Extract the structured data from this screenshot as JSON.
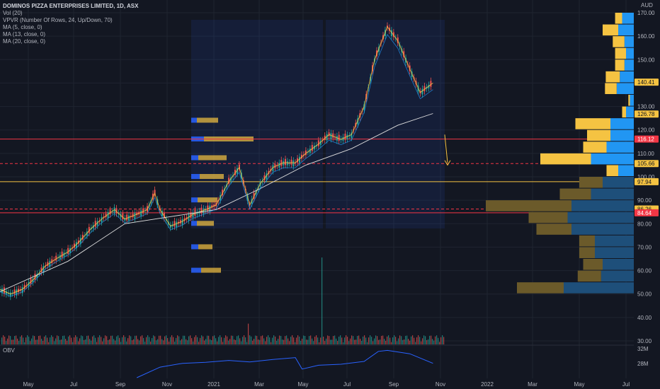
{
  "header": {
    "title": "DOMINOS PIZZA ENTERPRISES LIMITED, 1D, ASX",
    "indicators": [
      "Vol (20)",
      "VPVR (Number Of Rows, 24, Up/Down, 70)",
      "MA (5, close, 0)",
      "MA (13, close, 0)",
      "MA (20, close, 0)"
    ]
  },
  "obv_label": "OBV",
  "currency": "AUD",
  "chart_data": {
    "type": "candlestick",
    "x_ticks": [
      "May",
      "Jul",
      "Sep",
      "Nov",
      "2021",
      "Mar",
      "May",
      "Jul",
      "Sep",
      "Nov",
      "2022",
      "Mar",
      "May",
      "Jul"
    ],
    "y_ticks": [
      30,
      40,
      50,
      60,
      70,
      80,
      90,
      100,
      110,
      120,
      130,
      140,
      150,
      160,
      170
    ],
    "ylim": [
      30,
      170
    ],
    "obv_ticks": [
      "32M",
      "28M"
    ],
    "price_tags": [
      {
        "value": 140.41,
        "label": "140.41",
        "color": "#f5c342",
        "text_color": "#131722"
      },
      {
        "value": 126.78,
        "label": "126.78",
        "color": "#f5c342",
        "text_color": "#131722"
      },
      {
        "value": 116.12,
        "label": "116.12",
        "color": "#f23645",
        "text_color": "#ffffff"
      },
      {
        "value": 105.66,
        "label": "105.66",
        "color": "#f5c342",
        "text_color": "#131722"
      },
      {
        "value": 97.94,
        "label": "97.94",
        "color": "#f5c342",
        "text_color": "#131722"
      },
      {
        "value": 86.26,
        "label": "86.26",
        "color": "#f5c342",
        "text_color": "#131722"
      },
      {
        "value": 84.64,
        "label": "84.64",
        "color": "#f23645",
        "text_color": "#ffffff"
      }
    ],
    "horizontal_lines": [
      {
        "value": 116.12,
        "color": "#f23645",
        "style": "solid"
      },
      {
        "value": 105.66,
        "color": "#f23645",
        "style": "dashed"
      },
      {
        "value": 97.94,
        "color": "#f5c342",
        "style": "solid"
      },
      {
        "value": 86.26,
        "color": "#f23645",
        "style": "dashed"
      },
      {
        "value": 84.64,
        "color": "#f23645",
        "style": "solid"
      }
    ],
    "price_series": [
      {
        "date": "2020-04-01",
        "close": 52
      },
      {
        "date": "2020-04-15",
        "close": 50
      },
      {
        "date": "2020-05-01",
        "close": 52
      },
      {
        "date": "2020-05-15",
        "close": 56
      },
      {
        "date": "2020-06-01",
        "close": 62
      },
      {
        "date": "2020-06-15",
        "close": 65
      },
      {
        "date": "2020-07-01",
        "close": 68
      },
      {
        "date": "2020-07-15",
        "close": 72
      },
      {
        "date": "2020-08-01",
        "close": 78
      },
      {
        "date": "2020-08-15",
        "close": 82
      },
      {
        "date": "2020-09-01",
        "close": 86
      },
      {
        "date": "2020-09-15",
        "close": 82
      },
      {
        "date": "2020-10-01",
        "close": 84
      },
      {
        "date": "2020-10-15",
        "close": 86
      },
      {
        "date": "2020-10-25",
        "close": 93
      },
      {
        "date": "2020-11-01",
        "close": 86
      },
      {
        "date": "2020-11-15",
        "close": 79
      },
      {
        "date": "2020-12-01",
        "close": 81
      },
      {
        "date": "2020-12-15",
        "close": 84
      },
      {
        "date": "2021-01-01",
        "close": 86
      },
      {
        "date": "2021-01-15",
        "close": 88
      },
      {
        "date": "2021-02-01",
        "close": 98
      },
      {
        "date": "2021-02-15",
        "close": 104
      },
      {
        "date": "2021-03-01",
        "close": 88
      },
      {
        "date": "2021-03-15",
        "close": 97
      },
      {
        "date": "2021-04-01",
        "close": 104
      },
      {
        "date": "2021-04-15",
        "close": 106
      },
      {
        "date": "2021-05-01",
        "close": 106
      },
      {
        "date": "2021-05-15",
        "close": 110
      },
      {
        "date": "2021-06-01",
        "close": 114
      },
      {
        "date": "2021-06-15",
        "close": 118
      },
      {
        "date": "2021-07-01",
        "close": 116
      },
      {
        "date": "2021-07-15",
        "close": 118
      },
      {
        "date": "2021-08-01",
        "close": 130
      },
      {
        "date": "2021-08-15",
        "close": 150
      },
      {
        "date": "2021-09-01",
        "close": 164
      },
      {
        "date": "2021-09-15",
        "close": 158
      },
      {
        "date": "2021-10-01",
        "close": 146
      },
      {
        "date": "2021-10-15",
        "close": 136
      },
      {
        "date": "2021-11-01",
        "close": 140
      }
    ],
    "ma_long": [
      {
        "date": "2020-04-01",
        "value": 51
      },
      {
        "date": "2020-07-01",
        "value": 64
      },
      {
        "date": "2020-09-15",
        "value": 80
      },
      {
        "date": "2020-11-15",
        "value": 83
      },
      {
        "date": "2021-01-15",
        "value": 86
      },
      {
        "date": "2021-03-15",
        "value": 95
      },
      {
        "date": "2021-05-15",
        "value": 105
      },
      {
        "date": "2021-07-15",
        "value": 112
      },
      {
        "date": "2021-09-15",
        "value": 122
      },
      {
        "date": "2021-11-01",
        "value": 127
      }
    ],
    "volume_profile_right": [
      {
        "price_low": 165,
        "price_high": 170,
        "up": 15,
        "down": 9
      },
      {
        "price_low": 160,
        "price_high": 165,
        "up": 20,
        "down": 20
      },
      {
        "price_low": 155,
        "price_high": 160,
        "up": 12,
        "down": 15
      },
      {
        "price_low": 150,
        "price_high": 155,
        "up": 10,
        "down": 14
      },
      {
        "price_low": 145,
        "price_high": 150,
        "up": 12,
        "down": 12
      },
      {
        "price_low": 140,
        "price_high": 145,
        "up": 18,
        "down": 18
      },
      {
        "price_low": 135,
        "price_high": 140,
        "up": 22,
        "down": 15
      },
      {
        "price_low": 130,
        "price_high": 135,
        "up": 5,
        "down": 2
      },
      {
        "price_low": 125,
        "price_high": 130,
        "up": 10,
        "down": 5
      },
      {
        "price_low": 120,
        "price_high": 125,
        "up": 30,
        "down": 45
      },
      {
        "price_low": 115,
        "price_high": 120,
        "up": 30,
        "down": 30
      },
      {
        "price_low": 110,
        "price_high": 115,
        "up": 35,
        "down": 30
      },
      {
        "price_low": 105,
        "price_high": 110,
        "up": 55,
        "down": 65
      },
      {
        "price_low": 100,
        "price_high": 105,
        "up": 20,
        "down": 15
      },
      {
        "price_low": 95,
        "price_high": 100,
        "up": 40,
        "down": 30
      },
      {
        "price_low": 90,
        "price_high": 95,
        "up": 55,
        "down": 40
      },
      {
        "price_low": 85,
        "price_high": 90,
        "up": 80,
        "down": 110
      },
      {
        "price_low": 80,
        "price_high": 85,
        "up": 85,
        "down": 50
      },
      {
        "price_low": 75,
        "price_high": 80,
        "up": 80,
        "down": 45
      },
      {
        "price_low": 70,
        "price_high": 75,
        "up": 50,
        "down": 20
      },
      {
        "price_low": 65,
        "price_high": 70,
        "up": 50,
        "down": 20
      },
      {
        "price_low": 60,
        "price_high": 65,
        "up": 40,
        "down": 25
      },
      {
        "price_low": 55,
        "price_high": 60,
        "up": 42,
        "down": 30
      },
      {
        "price_low": 50,
        "price_high": 55,
        "up": 90,
        "down": 60
      }
    ],
    "obv_series": [
      {
        "date": "2020-10-01",
        "value": 26.0
      },
      {
        "date": "2020-11-01",
        "value": 28.2
      },
      {
        "date": "2020-12-01",
        "value": 29.0
      },
      {
        "date": "2021-01-01",
        "value": 29.2
      },
      {
        "date": "2021-02-01",
        "value": 29.6
      },
      {
        "date": "2021-03-01",
        "value": 29.3
      },
      {
        "date": "2021-04-01",
        "value": 29.8
      },
      {
        "date": "2021-05-01",
        "value": 30.2
      },
      {
        "date": "2021-05-10",
        "value": 27.8
      },
      {
        "date": "2021-06-01",
        "value": 28.6
      },
      {
        "date": "2021-07-01",
        "value": 28.8
      },
      {
        "date": "2021-08-01",
        "value": 29.4
      },
      {
        "date": "2021-08-20",
        "value": 31.5
      },
      {
        "date": "2021-09-01",
        "value": 31.7
      },
      {
        "date": "2021-10-01",
        "value": 31.0
      },
      {
        "date": "2021-11-01",
        "value": 29.0
      }
    ]
  }
}
